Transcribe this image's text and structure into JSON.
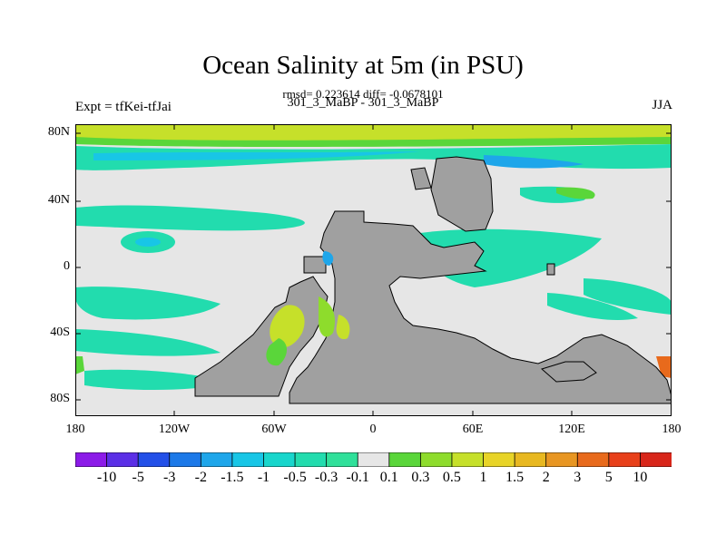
{
  "title": "Ocean Salinity at 5m (in PSU)",
  "stats": "rmsd= 0.223614 diff= -0.0678101",
  "case_line": "301_3_MaBP - 301_3_MaBP",
  "expt_label": "Expt = tfKei-tfJai",
  "season": "JJA",
  "lat_ticks": [
    "80N",
    "40N",
    "0",
    "40S",
    "80S"
  ],
  "lon_ticks": [
    "180",
    "120W",
    "60W",
    "0",
    "60E",
    "120E",
    "180"
  ],
  "colorbar_labels": [
    "-10",
    "-5",
    "-3",
    "-2",
    "-1.5",
    "-1",
    "-0.5",
    "-0.3",
    "-0.1",
    "0.1",
    "0.3",
    "0.5",
    "1",
    "1.5",
    "2",
    "3",
    "5",
    "10"
  ],
  "colors": {
    "land": "#a0a0a0",
    "neutral": "#e6e6e6",
    "colorbar": [
      "#8c1be8",
      "#5b2fe6",
      "#2350e8",
      "#1c79e8",
      "#1ea6ea",
      "#18c6e6",
      "#18d6cc",
      "#22dcae",
      "#30e09a",
      "#e6e6e6",
      "#5ad63a",
      "#8edc2c",
      "#c6e02a",
      "#e8d427",
      "#e8b820",
      "#e89622",
      "#e86a1c",
      "#e8401a",
      "#d8261a"
    ]
  }
}
